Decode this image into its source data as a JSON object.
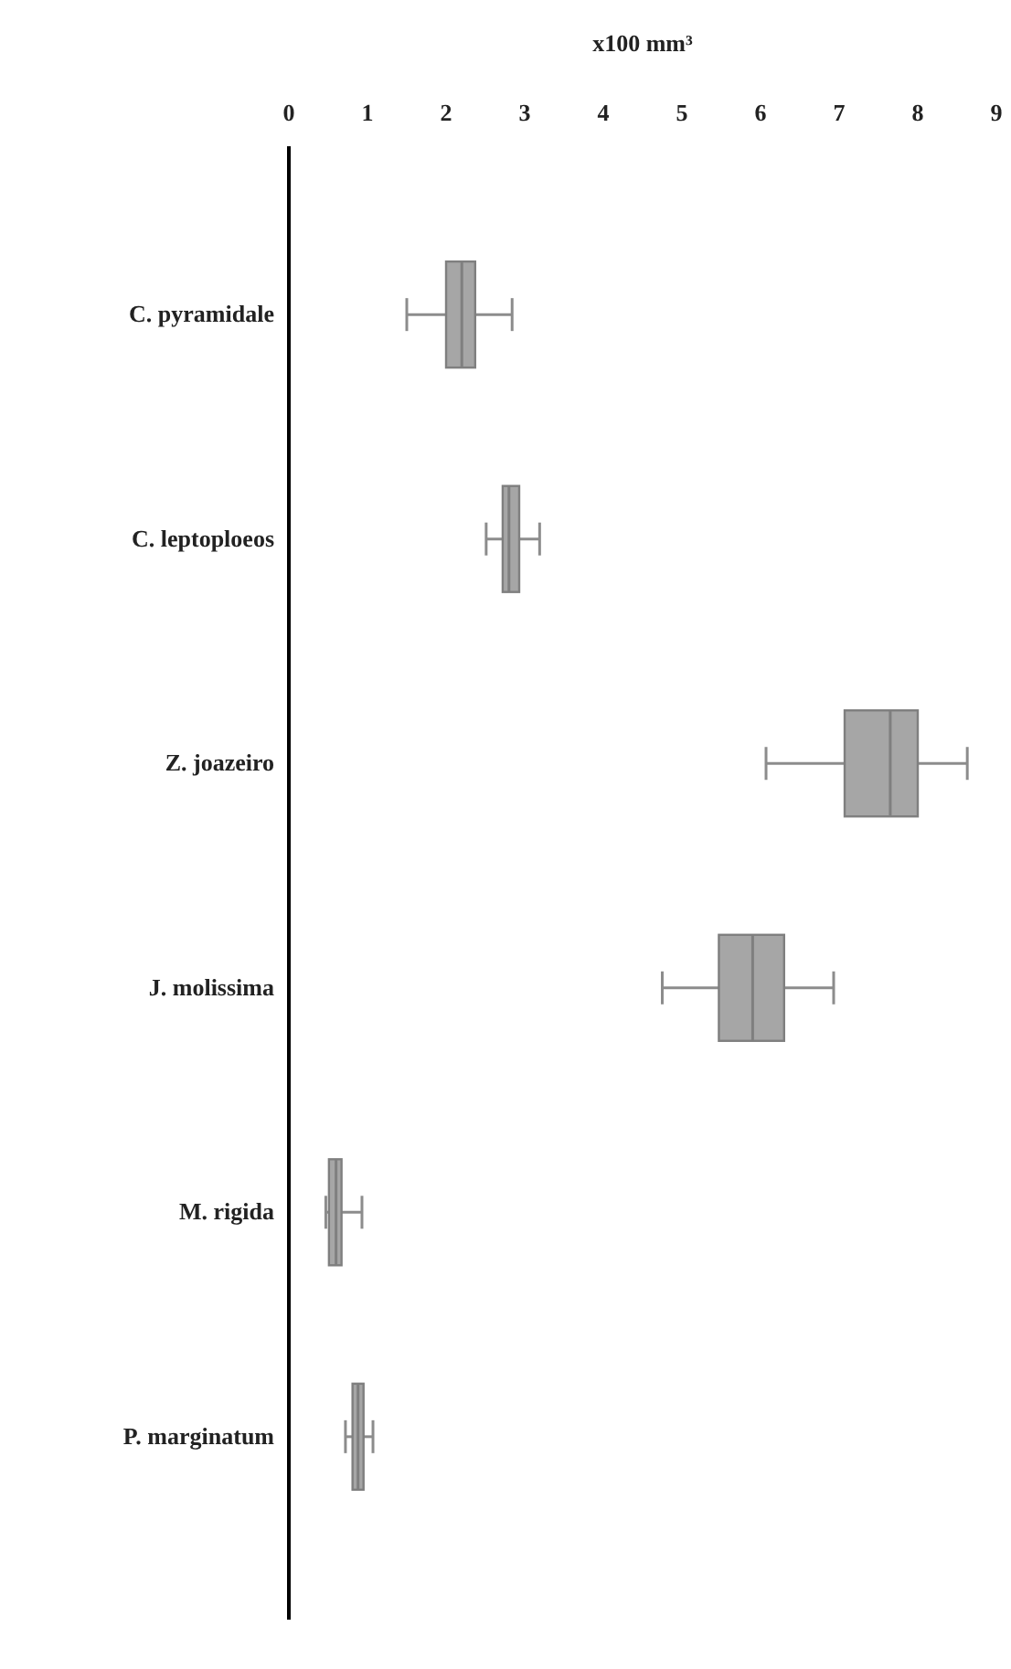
{
  "chart_data": {
    "type": "box",
    "orientation": "horizontal",
    "xlabel": "x100 mm³",
    "categories": [
      "C. pyramidale",
      "C. leptoploeos",
      "Z. joazeiro",
      "J. molissima",
      "M. rigida",
      "P. marginatum"
    ],
    "boxes": [
      {
        "low": 1.5,
        "q1": 2.0,
        "median": 2.2,
        "q3": 2.37,
        "high": 2.84
      },
      {
        "low": 2.51,
        "q1": 2.72,
        "median": 2.8,
        "q3": 2.93,
        "high": 3.19
      },
      {
        "low": 6.07,
        "q1": 7.07,
        "median": 7.65,
        "q3": 8.0,
        "high": 8.63
      },
      {
        "low": 4.75,
        "q1": 5.47,
        "median": 5.9,
        "q3": 6.3,
        "high": 6.93
      },
      {
        "low": 0.47,
        "q1": 0.51,
        "median": 0.6,
        "q3": 0.67,
        "high": 0.93
      },
      {
        "low": 0.72,
        "q1": 0.81,
        "median": 0.88,
        "q3": 0.95,
        "high": 1.07
      }
    ],
    "color": "#a6a6a6",
    "xlim": [
      0,
      9
    ],
    "xticks": [
      0,
      1,
      2,
      3,
      4,
      5,
      6,
      7,
      8,
      9
    ]
  }
}
